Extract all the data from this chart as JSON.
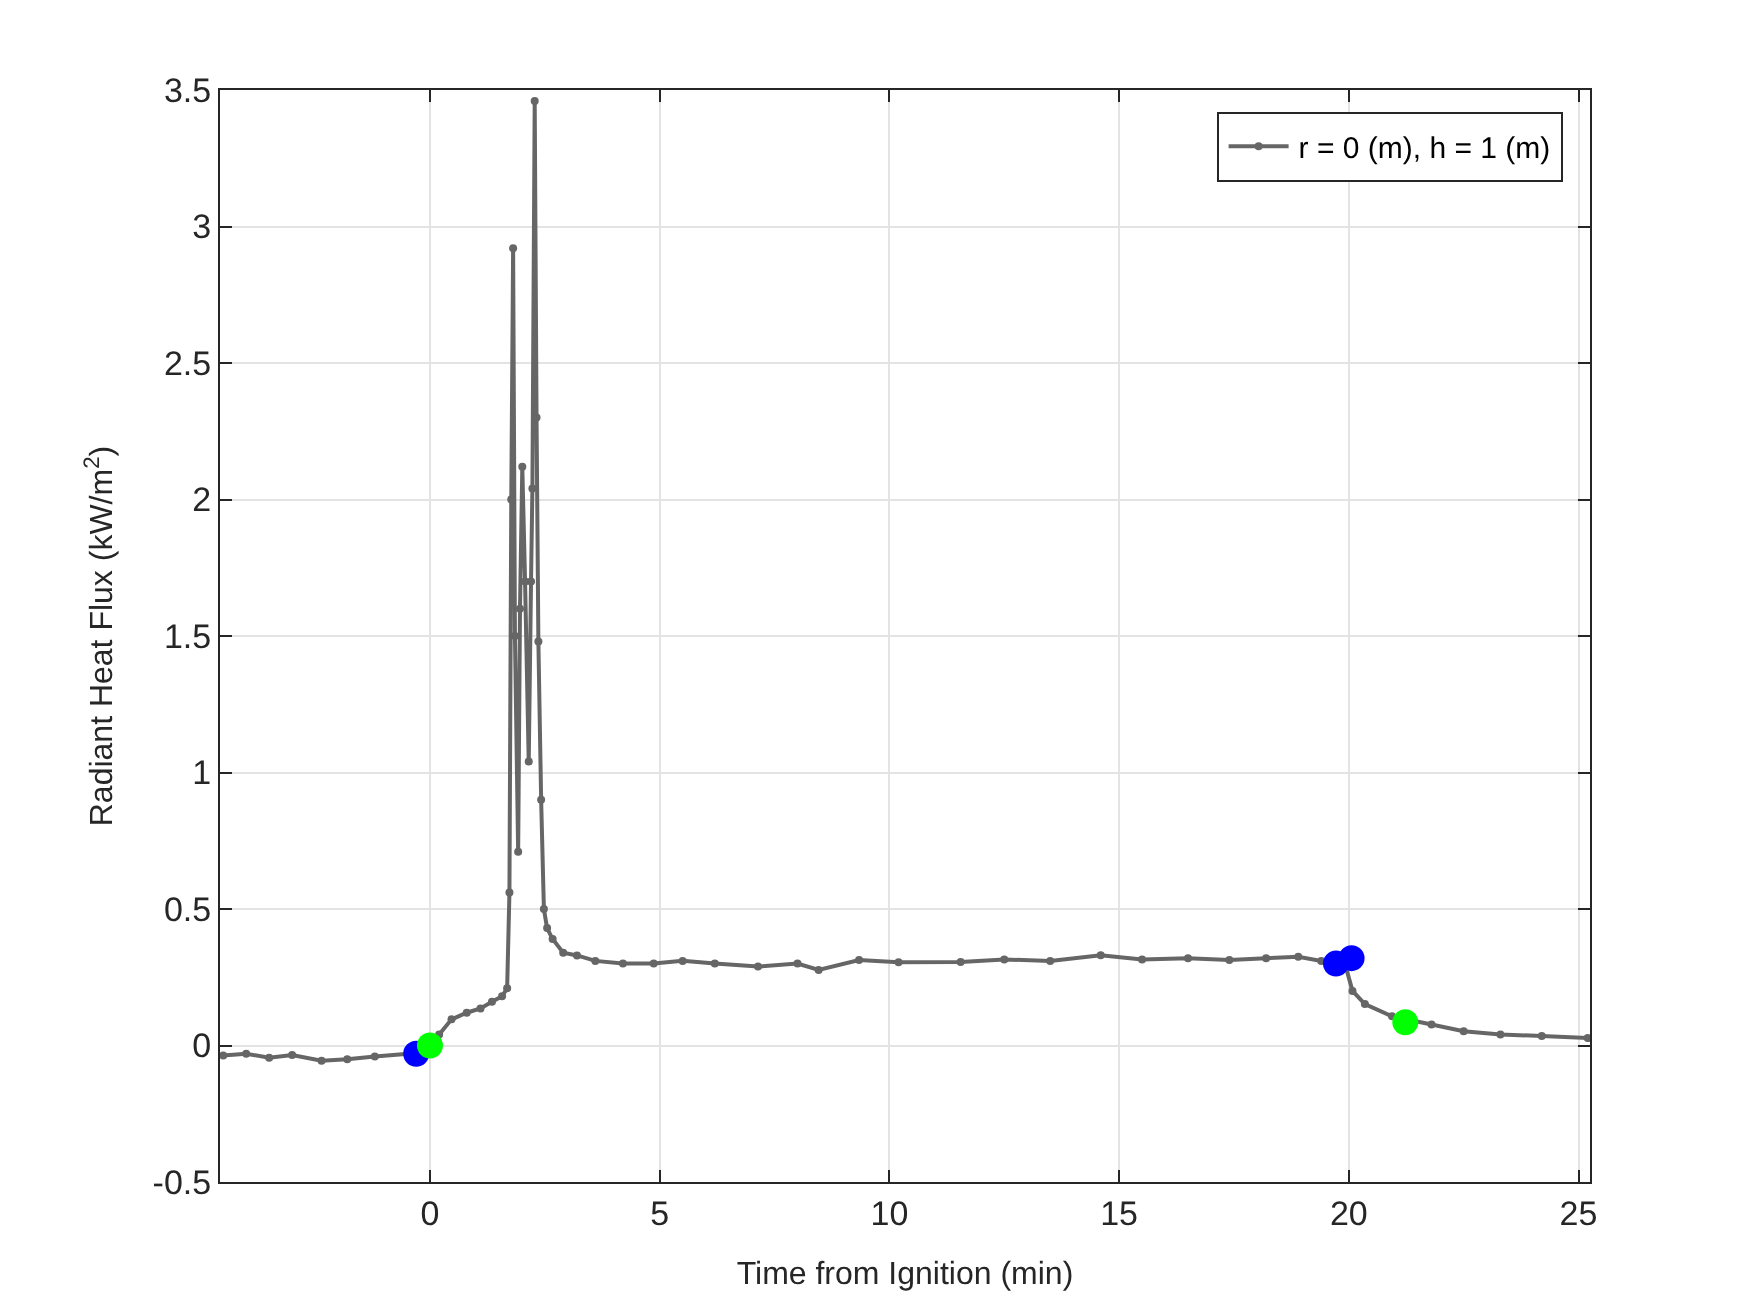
{
  "chart_data": {
    "type": "line",
    "xlabel": "Time from Ignition (min)",
    "ylabel": "Radiant Heat Flux (kW/m$^{2}$)",
    "xlim": [
      -4.57,
      25.25
    ],
    "xticks": [
      0,
      5,
      10,
      15,
      20,
      25
    ],
    "ylim": [
      -0.5,
      3.5
    ],
    "yticks": [
      -0.5,
      0,
      0.5,
      1,
      1.5,
      2,
      2.5,
      3,
      3.5
    ],
    "grid": true,
    "legend": "top right",
    "marker": "circle",
    "line_style": "solid",
    "series": [
      {
        "name": "r = 0 (m), h = 1 (m)",
        "color": "#666666",
        "x": [
          -4.5,
          -4.0,
          -3.5,
          -3.0,
          -2.36,
          -1.8,
          -1.2,
          -0.47,
          0,
          0.2,
          0.47,
          0.8,
          1.1,
          1.35,
          1.57,
          1.68,
          1.73,
          1.77,
          1.81,
          1.85,
          1.92,
          1.96,
          2.01,
          2.07,
          2.15,
          2.2,
          2.23,
          2.28,
          2.32,
          2.36,
          2.42,
          2.48,
          2.55,
          2.67,
          2.9,
          3.2,
          3.6,
          4.2,
          4.87,
          5.5,
          6.2,
          7.14,
          8.0,
          8.46,
          9.34,
          10.2,
          11.55,
          12.5,
          13.5,
          14.6,
          15.5,
          16.5,
          17.4,
          18.2,
          18.9,
          19.4,
          19.9,
          20.08,
          20.35,
          20.94,
          21.8,
          22.5,
          23.3,
          24.2,
          25.2
        ],
        "values": [
          -0.037,
          -0.03,
          -0.045,
          -0.035,
          -0.056,
          -0.05,
          -0.04,
          -0.03,
          0.0,
          0.04,
          0.096,
          0.12,
          0.136,
          0.16,
          0.18,
          0.21,
          0.56,
          2.0,
          2.92,
          1.5,
          0.71,
          1.6,
          2.12,
          1.7,
          1.04,
          1.7,
          2.04,
          3.46,
          2.3,
          1.48,
          0.9,
          0.5,
          0.43,
          0.39,
          0.34,
          0.33,
          0.31,
          0.3,
          0.3,
          0.31,
          0.3,
          0.289,
          0.3,
          0.277,
          0.313,
          0.305,
          0.306,
          0.315,
          0.31,
          0.331,
          0.315,
          0.32,
          0.313,
          0.32,
          0.325,
          0.31,
          0.31,
          0.2,
          0.152,
          0.107,
          0.077,
          0.052,
          0.04,
          0.035,
          0.027
        ]
      },
      {
        "type": "scatter",
        "color": "#0000ff",
        "x": [
          -0.3,
          19.72,
          20.06
        ],
        "values": [
          -0.03,
          0.3,
          0.32
        ]
      },
      {
        "type": "scatter",
        "color": "#00ff00",
        "x": [
          0.0,
          21.23
        ],
        "values": [
          0.0,
          0.085
        ]
      }
    ]
  }
}
